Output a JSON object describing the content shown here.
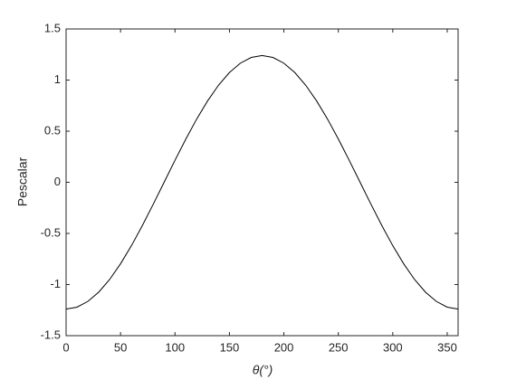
{
  "chart_data": {
    "type": "line",
    "x_label": "θ(°)",
    "y_label": "Pescalar",
    "x": [
      0,
      10,
      20,
      30,
      40,
      50,
      60,
      70,
      80,
      90,
      100,
      110,
      120,
      130,
      140,
      150,
      160,
      170,
      180,
      190,
      200,
      210,
      220,
      230,
      240,
      250,
      260,
      270,
      280,
      290,
      300,
      310,
      320,
      330,
      340,
      350,
      360
    ],
    "series": [
      {
        "color": "#000000",
        "values": [
          -1.24,
          -1.221,
          -1.165,
          -1.074,
          -0.95,
          -0.797,
          -0.62,
          -0.424,
          -0.215,
          0,
          0.215,
          0.424,
          0.62,
          0.797,
          0.95,
          1.074,
          1.165,
          1.221,
          1.24,
          1.221,
          1.165,
          1.074,
          0.95,
          0.797,
          0.62,
          0.424,
          0.215,
          0,
          -0.215,
          -0.424,
          -0.62,
          -0.797,
          -0.95,
          -1.074,
          -1.165,
          -1.221,
          -1.24
        ]
      }
    ],
    "xlim": [
      0,
      360
    ],
    "xticks": [
      0,
      50,
      100,
      150,
      200,
      250,
      300,
      350
    ],
    "ylim": [
      -1.5,
      1.5
    ],
    "yticks": [
      -1.5,
      -1,
      -0.5,
      0,
      0.5,
      1,
      1.5
    ],
    "grid": false
  }
}
